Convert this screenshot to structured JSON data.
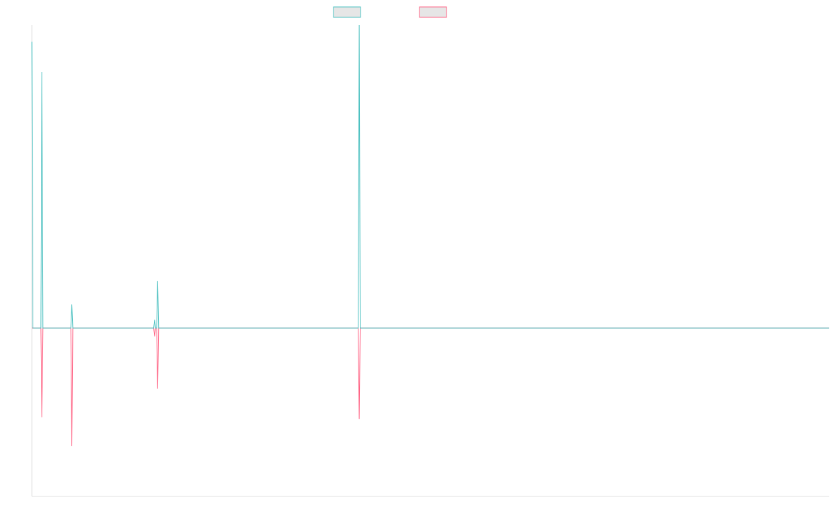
{
  "chart_data": {
    "type": "line",
    "title": "",
    "xlabel": "",
    "ylabel": "",
    "grid": false,
    "legend_position": "top-center",
    "x_count": 800,
    "ylim": [
      -100,
      180
    ],
    "series": [
      {
        "color": "#4bc0c0",
        "fill": "#e6e6e6",
        "points": [
          [
            0,
            170
          ],
          [
            1,
            0
          ],
          [
            9,
            0
          ],
          [
            10,
            152
          ],
          [
            11,
            0
          ],
          [
            39,
            0
          ],
          [
            40,
            14
          ],
          [
            41,
            0
          ],
          [
            122,
            0
          ],
          [
            123,
            5
          ],
          [
            124,
            0
          ],
          [
            125,
            0
          ],
          [
            126,
            28
          ],
          [
            127,
            0
          ],
          [
            327,
            0
          ],
          [
            328,
            180
          ],
          [
            329,
            0
          ],
          [
            799,
            0
          ]
        ]
      },
      {
        "color": "#ff6384",
        "fill": "#e6e6e6",
        "points": [
          [
            0,
            0
          ],
          [
            9,
            0
          ],
          [
            10,
            -53
          ],
          [
            11,
            0
          ],
          [
            39,
            0
          ],
          [
            40,
            -70
          ],
          [
            41,
            0
          ],
          [
            122,
            0
          ],
          [
            123,
            -5
          ],
          [
            124,
            0
          ],
          [
            125,
            0
          ],
          [
            126,
            -36
          ],
          [
            127,
            0
          ],
          [
            327,
            0
          ],
          [
            328,
            -54
          ],
          [
            329,
            0
          ],
          [
            799,
            0
          ]
        ]
      }
    ]
  }
}
